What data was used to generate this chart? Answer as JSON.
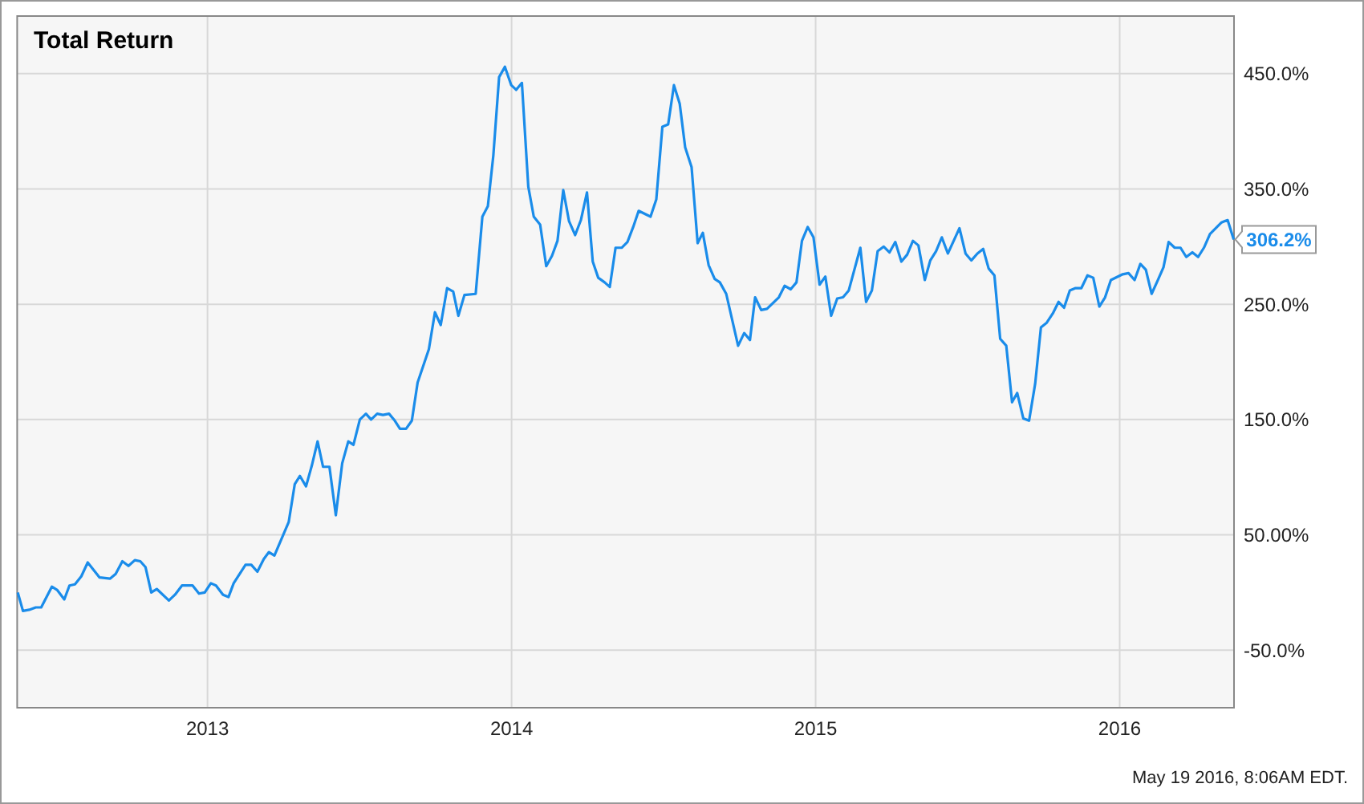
{
  "chart_data": {
    "type": "line",
    "title": "Total Return",
    "xlim": [
      2012.374,
      2016.376
    ],
    "xticks": [
      2013,
      2014,
      2015,
      2016
    ],
    "ylim": [
      -100,
      500
    ],
    "yticks": [
      {
        "value": 450,
        "label": "450.0%"
      },
      {
        "value": 350,
        "label": "350.0%"
      },
      {
        "value": 250,
        "label": "250.0%"
      },
      {
        "value": 150,
        "label": "150.0%"
      },
      {
        "value": 50,
        "label": "50.00%"
      },
      {
        "value": -50,
        "label": "-50.0%"
      }
    ],
    "grid": true,
    "annotations": [
      {
        "text": "306.2%",
        "x": 2016.375,
        "y": 306.2
      },
      "May 19 2016, 8:06AM EDT."
    ],
    "series": [
      {
        "color": "#1a8cea",
        "x": [
          2012.376,
          2012.393,
          2012.414,
          2012.435,
          2012.453,
          2012.488,
          2012.506,
          2012.529,
          2012.546,
          2012.564,
          2012.585,
          2012.606,
          2012.645,
          2012.68,
          2012.698,
          2012.72,
          2012.74,
          2012.761,
          2012.779,
          2012.796,
          2012.815,
          2012.833,
          2012.873,
          2012.893,
          2012.916,
          2012.951,
          2012.972,
          2012.991,
          2013.011,
          2013.028,
          2013.051,
          2013.069,
          2013.086,
          2013.125,
          2013.144,
          2013.164,
          2013.185,
          2013.202,
          2013.22,
          2013.267,
          2013.287,
          2013.304,
          2013.324,
          2013.343,
          2013.362,
          2013.38,
          2013.401,
          2013.422,
          2013.443,
          2013.463,
          2013.48,
          2013.501,
          2013.521,
          2013.538,
          2013.558,
          2013.577,
          2013.597,
          2013.616,
          2013.633,
          2013.653,
          2013.672,
          2013.691,
          2013.728,
          2013.748,
          2013.767,
          2013.788,
          2013.808,
          2013.825,
          2013.845,
          2013.882,
          2013.904,
          2013.922,
          2013.94,
          2013.959,
          2013.978,
          2013.999,
          2014.015,
          2014.034,
          2014.055,
          2014.073,
          2014.094,
          2014.114,
          2014.133,
          2014.151,
          2014.17,
          2014.189,
          2014.209,
          2014.228,
          2014.248,
          2014.267,
          2014.285,
          2014.306,
          2014.323,
          2014.342,
          2014.362,
          2014.381,
          2014.4,
          2014.418,
          2014.457,
          2014.476,
          2014.496,
          2014.515,
          2014.534,
          2014.553,
          2014.571,
          2014.592,
          2014.612,
          2014.629,
          2014.648,
          2014.668,
          2014.685,
          2014.706,
          2014.745,
          2014.765,
          2014.784,
          2014.801,
          2014.821,
          2014.84,
          2014.879,
          2014.898,
          2014.918,
          2014.937,
          2014.955,
          2014.974,
          2014.993,
          2015.013,
          2015.032,
          2015.051,
          2015.071,
          2015.09,
          2015.109,
          2015.147,
          2015.166,
          2015.185,
          2015.204,
          2015.224,
          2015.243,
          2015.262,
          2015.282,
          2015.301,
          2015.32,
          2015.338,
          2015.359,
          2015.377,
          2015.396,
          2015.415,
          2015.435,
          2015.454,
          2015.473,
          2015.493,
          2015.512,
          2015.532,
          2015.551,
          2015.569,
          2015.588,
          2015.607,
          2015.627,
          2015.646,
          2015.663,
          2015.683,
          2015.702,
          2015.722,
          2015.741,
          2015.76,
          2015.78,
          2015.799,
          2015.817,
          2015.836,
          2015.855,
          2015.874,
          2015.894,
          2015.913,
          2015.933,
          2015.952,
          2015.971,
          2016.01,
          2016.029,
          2016.049,
          2016.068,
          2016.086,
          2016.105,
          2016.124,
          2016.144,
          2016.161,
          2016.181,
          2016.2,
          2016.219,
          2016.239,
          2016.258,
          2016.277,
          2016.297,
          2016.316,
          2016.335,
          2016.355,
          2016.375
        ],
        "values": [
          0,
          -16,
          -15,
          -13,
          -13,
          5,
          2,
          -6,
          6,
          7,
          14,
          26,
          13,
          12,
          16,
          27,
          23,
          28,
          27,
          22,
          0,
          3,
          -7,
          -2,
          6,
          6,
          -1,
          0,
          8,
          6,
          -2,
          -4,
          8,
          24,
          24,
          18,
          29,
          35,
          32,
          61,
          94,
          101,
          92,
          110,
          131,
          109,
          109,
          67,
          112,
          131,
          128,
          150,
          155,
          150,
          155,
          154,
          155,
          149,
          142,
          142,
          149,
          182,
          211,
          243,
          232,
          264,
          261,
          240,
          258,
          259,
          326,
          335,
          379,
          447,
          456,
          440,
          436,
          442,
          352,
          326,
          319,
          283,
          292,
          305,
          349,
          322,
          310,
          323,
          347,
          287,
          273,
          269,
          265,
          299,
          299,
          304,
          317,
          331,
          326,
          341,
          404,
          406,
          440,
          424,
          386,
          369,
          303,
          312,
          284,
          272,
          269,
          259,
          214,
          225,
          219,
          256,
          245,
          246,
          256,
          266,
          263,
          269,
          305,
          317,
          308,
          267,
          274,
          240,
          255,
          256,
          262,
          299,
          252,
          262,
          296,
          300,
          295,
          304,
          287,
          293,
          305,
          301,
          271,
          288,
          296,
          308,
          294,
          305,
          316,
          294,
          288,
          294,
          298,
          281,
          275,
          220,
          214,
          165,
          173,
          151,
          149,
          181,
          230,
          234,
          242,
          252,
          247,
          262,
          264,
          264,
          275,
          273,
          248,
          256,
          271,
          276,
          277,
          271,
          285,
          280,
          259,
          270,
          282,
          304,
          299,
          299,
          291,
          295,
          291,
          299,
          311,
          316,
          321,
          323,
          306.2
        ]
      }
    ]
  }
}
